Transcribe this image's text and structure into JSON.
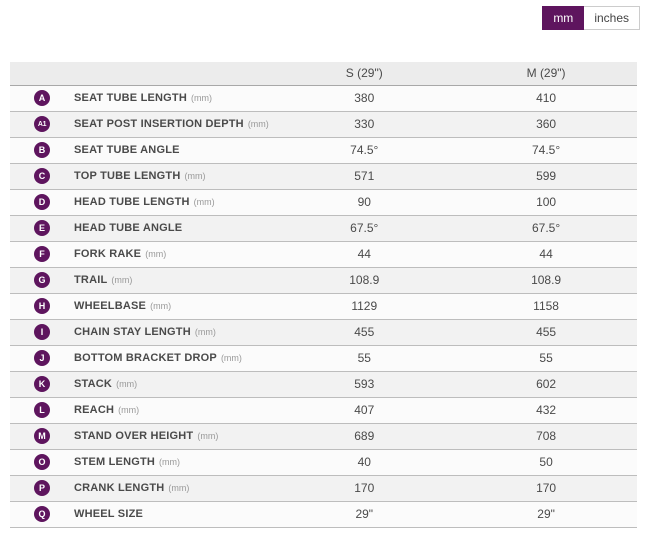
{
  "unit_toggle": {
    "options": [
      {
        "label": "mm",
        "selected": true
      },
      {
        "label": "inches",
        "selected": false
      }
    ]
  },
  "colors": {
    "brand_purple": "#5e155e",
    "header_bg": "#ececec",
    "row_light": "#fbfbfb",
    "row_dark": "#f2f2f2",
    "border_gray": "#bdbdbd"
  },
  "table": {
    "size_columns": [
      "S (29\")",
      "M (29\")"
    ],
    "rows": [
      {
        "badge": "A",
        "label": "SEAT TUBE LENGTH",
        "unit": "(mm)",
        "s": "380",
        "m": "410"
      },
      {
        "badge": "A1",
        "label": "SEAT POST INSERTION DEPTH",
        "unit": "(mm)",
        "s": "330",
        "m": "360"
      },
      {
        "badge": "B",
        "label": "SEAT TUBE ANGLE",
        "unit": "",
        "s": "74.5°",
        "m": "74.5°"
      },
      {
        "badge": "C",
        "label": "TOP TUBE LENGTH",
        "unit": "(mm)",
        "s": "571",
        "m": "599"
      },
      {
        "badge": "D",
        "label": "HEAD TUBE LENGTH",
        "unit": "(mm)",
        "s": "90",
        "m": "100"
      },
      {
        "badge": "E",
        "label": "HEAD TUBE ANGLE",
        "unit": "",
        "s": "67.5°",
        "m": "67.5°"
      },
      {
        "badge": "F",
        "label": "FORK RAKE",
        "unit": "(mm)",
        "s": "44",
        "m": "44"
      },
      {
        "badge": "G",
        "label": "TRAIL",
        "unit": "(mm)",
        "s": "108.9",
        "m": "108.9"
      },
      {
        "badge": "H",
        "label": "WHEELBASE",
        "unit": "(mm)",
        "s": "1129",
        "m": "1158"
      },
      {
        "badge": "I",
        "label": "CHAIN STAY LENGTH",
        "unit": "(mm)",
        "s": "455",
        "m": "455"
      },
      {
        "badge": "J",
        "label": "BOTTOM BRACKET DROP",
        "unit": "(mm)",
        "s": "55",
        "m": "55"
      },
      {
        "badge": "K",
        "label": "STACK",
        "unit": "(mm)",
        "s": "593",
        "m": "602"
      },
      {
        "badge": "L",
        "label": "REACH",
        "unit": "(mm)",
        "s": "407",
        "m": "432"
      },
      {
        "badge": "M",
        "label": "STAND OVER HEIGHT",
        "unit": "(mm)",
        "s": "689",
        "m": "708"
      },
      {
        "badge": "O",
        "label": "STEM LENGTH",
        "unit": "(mm)",
        "s": "40",
        "m": "50"
      },
      {
        "badge": "P",
        "label": "CRANK LENGTH",
        "unit": "(mm)",
        "s": "170",
        "m": "170"
      },
      {
        "badge": "Q",
        "label": "WHEEL SIZE",
        "unit": "",
        "s": "29\"",
        "m": "29\""
      }
    ]
  }
}
